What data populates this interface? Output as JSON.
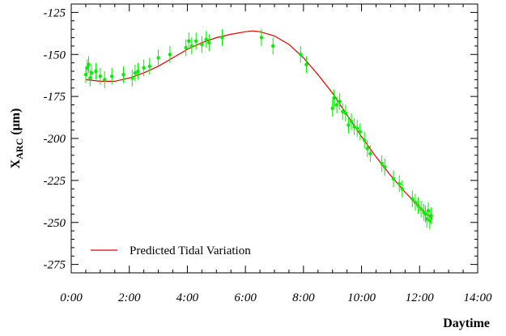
{
  "chart_data": {
    "type": "scatter",
    "xlabel": "Daytime",
    "ylabel_main": "X",
    "ylabel_sub": "ARC",
    "ylabel_unit": " (μm)",
    "xlim": [
      0,
      14
    ],
    "ylim": [
      -280,
      -120
    ],
    "x_ticks": [
      0,
      2,
      4,
      6,
      8,
      10,
      12,
      14
    ],
    "x_tick_labels": [
      "0:00",
      "2:00",
      "4:00",
      "6:00",
      "8:00",
      "10:00",
      "12:00",
      "14:00"
    ],
    "y_ticks": [
      -125,
      -150,
      -175,
      -200,
      -225,
      -250,
      -275
    ],
    "y_tick_labels": [
      "-125",
      "-150",
      "-175",
      "-200",
      "-225",
      "-250",
      "-275"
    ],
    "grid": false,
    "legend_position": "bottom-left",
    "colors": {
      "data": "#00ee00",
      "fit": "#dd0000"
    },
    "series": [
      {
        "kind": "points_with_errorbars",
        "units": "hours / μm",
        "points": [
          {
            "x": 0.5,
            "y": -162,
            "err": 5
          },
          {
            "x": 0.55,
            "y": -158,
            "err": 5
          },
          {
            "x": 0.6,
            "y": -156,
            "err": 5
          },
          {
            "x": 0.65,
            "y": -164,
            "err": 5
          },
          {
            "x": 0.7,
            "y": -161,
            "err": 5
          },
          {
            "x": 0.85,
            "y": -160,
            "err": 5
          },
          {
            "x": 1.0,
            "y": -163,
            "err": 5
          },
          {
            "x": 1.15,
            "y": -165,
            "err": 5
          },
          {
            "x": 1.4,
            "y": -163,
            "err": 5
          },
          {
            "x": 1.8,
            "y": -162,
            "err": 5
          },
          {
            "x": 2.1,
            "y": -164,
            "err": 5
          },
          {
            "x": 2.2,
            "y": -161,
            "err": 5
          },
          {
            "x": 2.3,
            "y": -160,
            "err": 5
          },
          {
            "x": 2.5,
            "y": -158,
            "err": 5
          },
          {
            "x": 2.7,
            "y": -157,
            "err": 5
          },
          {
            "x": 3.0,
            "y": -152,
            "err": 5
          },
          {
            "x": 3.4,
            "y": -150,
            "err": 5
          },
          {
            "x": 3.95,
            "y": -146,
            "err": 5
          },
          {
            "x": 4.05,
            "y": -142,
            "err": 5
          },
          {
            "x": 4.15,
            "y": -145,
            "err": 5
          },
          {
            "x": 4.3,
            "y": -142,
            "err": 5
          },
          {
            "x": 4.5,
            "y": -144,
            "err": 5
          },
          {
            "x": 4.65,
            "y": -141,
            "err": 5
          },
          {
            "x": 4.75,
            "y": -143,
            "err": 5
          },
          {
            "x": 5.2,
            "y": -140,
            "err": 5
          },
          {
            "x": 6.55,
            "y": -140,
            "err": 5
          },
          {
            "x": 6.95,
            "y": -145,
            "err": 5
          },
          {
            "x": 7.9,
            "y": -150,
            "err": 5
          },
          {
            "x": 8.1,
            "y": -156,
            "err": 5
          },
          {
            "x": 9.0,
            "y": -182,
            "err": 5
          },
          {
            "x": 9.05,
            "y": -176,
            "err": 5
          },
          {
            "x": 9.15,
            "y": -180,
            "err": 5
          },
          {
            "x": 9.25,
            "y": -178,
            "err": 5
          },
          {
            "x": 9.35,
            "y": -184,
            "err": 5
          },
          {
            "x": 9.45,
            "y": -185,
            "err": 5
          },
          {
            "x": 9.55,
            "y": -192,
            "err": 5
          },
          {
            "x": 9.65,
            "y": -190,
            "err": 5
          },
          {
            "x": 9.75,
            "y": -193,
            "err": 5
          },
          {
            "x": 9.85,
            "y": -194,
            "err": 5
          },
          {
            "x": 9.95,
            "y": -196,
            "err": 5
          },
          {
            "x": 10.1,
            "y": -201,
            "err": 5
          },
          {
            "x": 10.2,
            "y": -206,
            "err": 5
          },
          {
            "x": 10.3,
            "y": -209,
            "err": 5
          },
          {
            "x": 10.7,
            "y": -215,
            "err": 5
          },
          {
            "x": 10.8,
            "y": -217,
            "err": 5
          },
          {
            "x": 11.1,
            "y": -224,
            "err": 5
          },
          {
            "x": 11.3,
            "y": -227,
            "err": 5
          },
          {
            "x": 11.4,
            "y": -230,
            "err": 5
          },
          {
            "x": 11.75,
            "y": -236,
            "err": 5
          },
          {
            "x": 11.85,
            "y": -238,
            "err": 5
          },
          {
            "x": 11.95,
            "y": -240,
            "err": 5
          },
          {
            "x": 12.05,
            "y": -242,
            "err": 5
          },
          {
            "x": 12.15,
            "y": -244,
            "err": 5
          },
          {
            "x": 12.2,
            "y": -245,
            "err": 5
          },
          {
            "x": 12.25,
            "y": -248,
            "err": 5
          },
          {
            "x": 12.3,
            "y": -243,
            "err": 5
          },
          {
            "x": 12.35,
            "y": -249,
            "err": 5
          },
          {
            "x": 12.4,
            "y": -246,
            "err": 5
          }
        ]
      },
      {
        "name": "Predicted Tidal Variation",
        "kind": "line",
        "points": [
          {
            "x": 0.5,
            "y": -165
          },
          {
            "x": 1.0,
            "y": -166
          },
          {
            "x": 1.5,
            "y": -166
          },
          {
            "x": 2.0,
            "y": -164
          },
          {
            "x": 2.5,
            "y": -161
          },
          {
            "x": 3.0,
            "y": -157
          },
          {
            "x": 3.5,
            "y": -152
          },
          {
            "x": 4.0,
            "y": -147
          },
          {
            "x": 4.5,
            "y": -143
          },
          {
            "x": 5.0,
            "y": -140
          },
          {
            "x": 5.5,
            "y": -138
          },
          {
            "x": 6.0,
            "y": -136.5
          },
          {
            "x": 6.25,
            "y": -136
          },
          {
            "x": 6.5,
            "y": -136.5
          },
          {
            "x": 7.0,
            "y": -139
          },
          {
            "x": 7.5,
            "y": -144
          },
          {
            "x": 8.0,
            "y": -152
          },
          {
            "x": 8.5,
            "y": -162
          },
          {
            "x": 9.0,
            "y": -173
          },
          {
            "x": 9.5,
            "y": -186
          },
          {
            "x": 10.0,
            "y": -199
          },
          {
            "x": 10.5,
            "y": -211
          },
          {
            "x": 11.0,
            "y": -222
          },
          {
            "x": 11.5,
            "y": -232
          },
          {
            "x": 12.0,
            "y": -241
          },
          {
            "x": 12.45,
            "y": -248
          }
        ]
      }
    ]
  }
}
